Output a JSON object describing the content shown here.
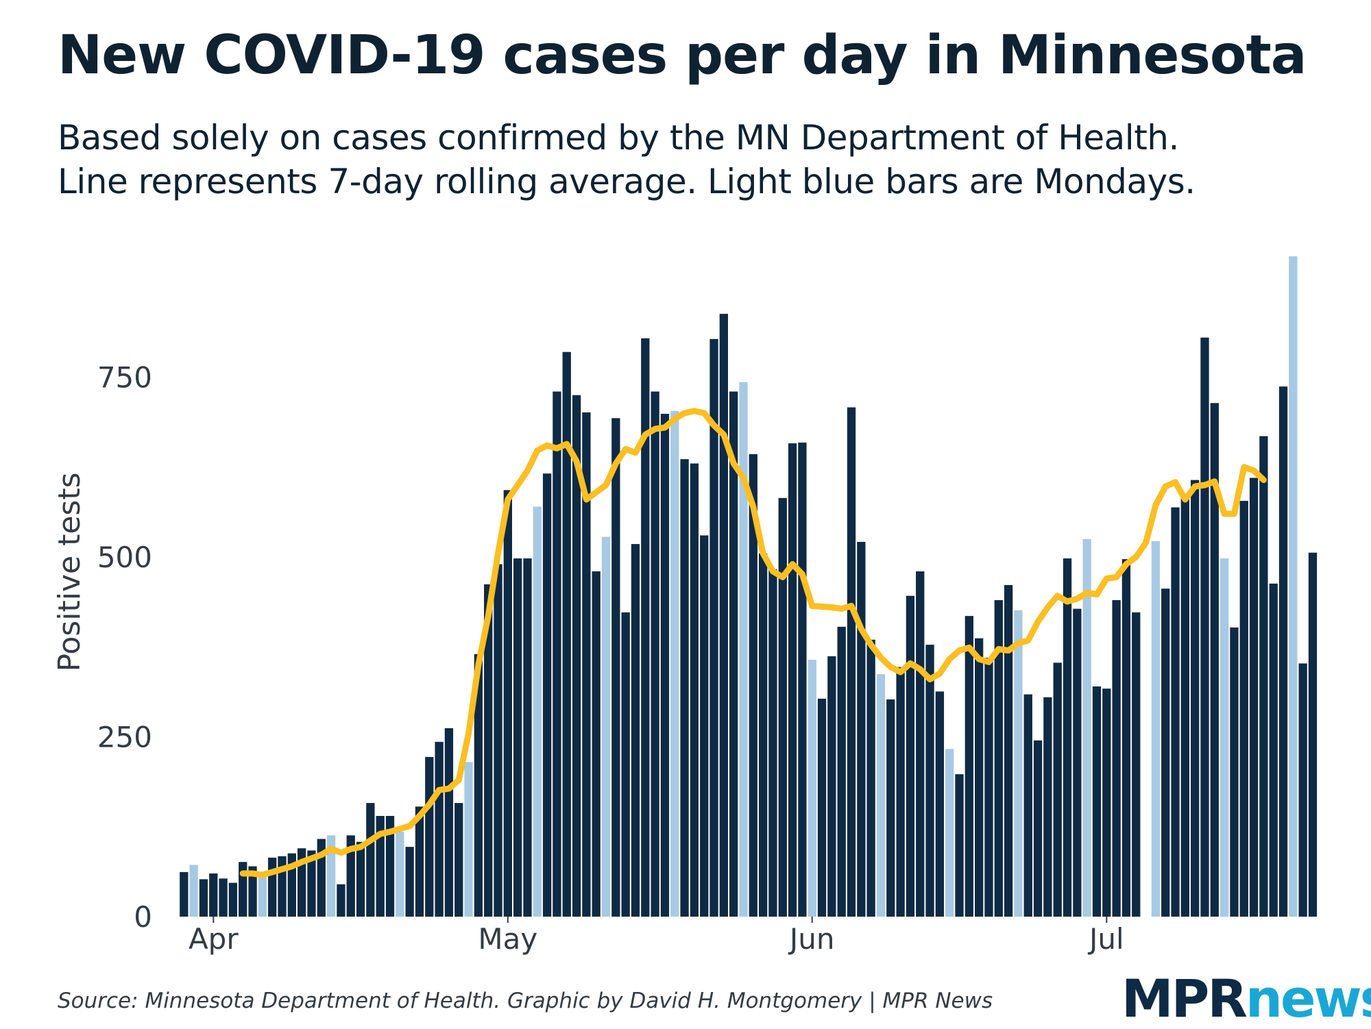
{
  "title": "New COVID-19 cases per day in Minnesota",
  "subtitle_line1": "Based solely on cases confirmed by the MN Department of Health.",
  "subtitle_line2": "Line represents 7-day rolling average. Light blue bars are Mondays.",
  "source": "Source: Minnesota Department of Health. Graphic by David H. Montgomery | MPR News",
  "logo": {
    "part1": "MPR",
    "part2": "news"
  },
  "colors": {
    "bar": "#0f2a44",
    "monday_bar": "#a8c9e3",
    "line": "#fbbf24",
    "text": "#0f2231"
  },
  "chart_data": {
    "type": "bar",
    "ylabel": "Positive tests",
    "ylim": [
      0,
      950
    ],
    "yticks": [
      0,
      250,
      500,
      750
    ],
    "xtick_labels": [
      {
        "label": "Apr",
        "day": 1
      },
      {
        "label": "May",
        "day": 31
      },
      {
        "label": "Jun",
        "day": 62
      },
      {
        "label": "Jul",
        "day": 92
      }
    ],
    "day_range": [
      -3,
      113
    ],
    "start_day": -2,
    "monday_days": [
      -1,
      6,
      13,
      20,
      27,
      34,
      41,
      48,
      55,
      62,
      69,
      76,
      83,
      90,
      97,
      104,
      111
    ],
    "gap_days": [
      96
    ],
    "values": [
      62,
      72,
      52,
      60,
      53,
      47,
      76,
      70,
      60,
      82,
      84,
      88,
      95,
      92,
      108,
      113,
      45,
      113,
      104,
      158,
      140,
      140,
      118,
      97,
      153,
      222,
      243,
      262,
      158,
      215,
      365,
      462,
      490,
      593,
      498,
      498,
      570,
      616,
      730,
      785,
      725,
      701,
      480,
      528,
      693,
      423,
      518,
      804,
      730,
      699,
      703,
      636,
      630,
      530,
      803,
      838,
      730,
      743,
      643,
      505,
      483,
      582,
      658,
      659,
      357,
      303,
      362,
      403,
      708,
      521,
      385,
      337,
      302,
      347,
      446,
      480,
      378,
      313,
      233,
      198,
      418,
      387,
      360,
      440,
      461,
      426,
      309,
      245,
      305,
      353,
      498,
      428,
      525,
      320,
      317,
      440,
      497,
      423,
      0,
      522,
      456,
      569,
      588,
      607,
      805,
      714,
      498,
      402,
      578,
      610,
      668,
      463,
      737,
      918,
      352,
      506
    ],
    "series": [
      {
        "name": "7-day rolling average",
        "type": "line",
        "start_day": 4,
        "values": [
          60,
          60,
          58,
          62,
          66,
          70,
          76,
          81,
          86,
          94,
          89,
          94,
          97,
          106,
          115,
          118,
          122,
          126,
          140,
          156,
          176,
          178,
          190,
          255,
          350,
          418,
          505,
          580,
          600,
          620,
          648,
          655,
          651,
          657,
          633,
          580,
          590,
          600,
          630,
          650,
          645,
          670,
          678,
          680,
          692,
          700,
          703,
          700,
          683,
          670,
          630,
          610,
          570,
          505,
          480,
          472,
          490,
          476,
          432,
          431,
          430,
          428,
          432,
          400,
          378,
          360,
          347,
          340,
          352,
          344,
          330,
          338,
          358,
          370,
          374,
          358,
          354,
          372,
          370,
          380,
          384,
          410,
          430,
          446,
          438,
          442,
          450,
          448,
          470,
          472,
          490,
          500,
          520,
          572,
          598,
          604,
          580,
          598,
          600,
          605,
          560,
          560,
          625,
          620,
          607
        ]
      }
    ]
  }
}
